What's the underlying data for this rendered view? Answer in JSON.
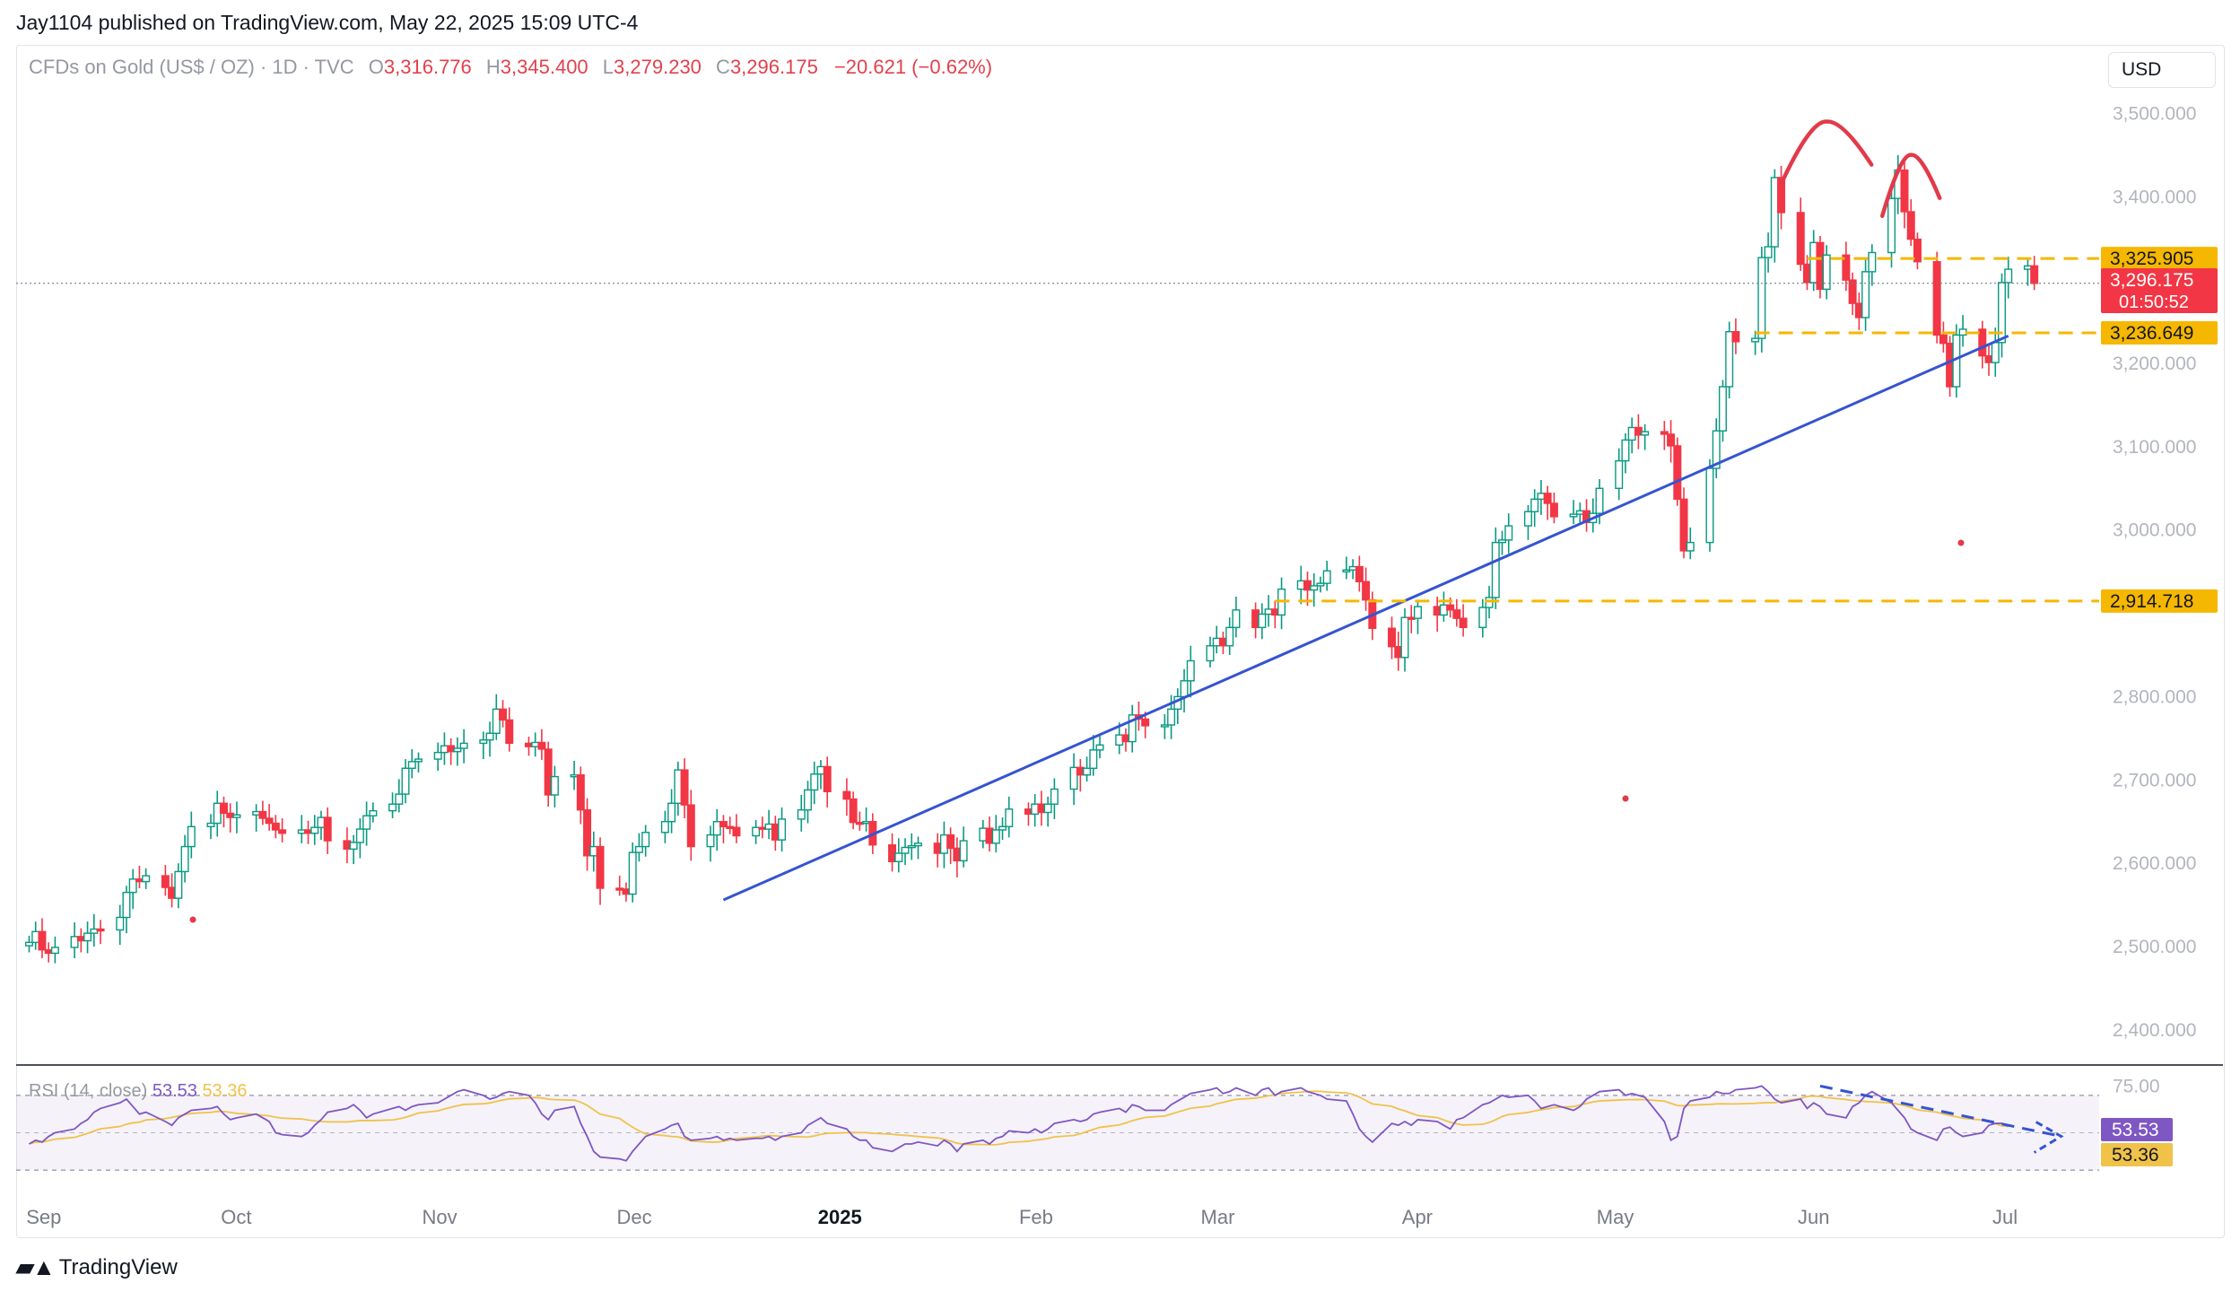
{
  "publisher": "Jay1104 published on TradingView.com, May 22, 2025 15:09 UTC-4",
  "symbol": {
    "name": "CFDs on Gold (US$ / OZ) · 1D · TVC",
    "open_label": "O",
    "open": "3,316.776",
    "high_label": "H",
    "high": "3,345.400",
    "low_label": "L",
    "low": "3,279.230",
    "close_label": "C",
    "close": "3,296.175",
    "change": "−20.621 (−0.62%)"
  },
  "currency": "USD",
  "brand": "TradingView",
  "colors": {
    "up": "#089981",
    "down": "#f23645",
    "trendline": "#3554d1",
    "level": "#f5b700",
    "rsi": "#7e57c2",
    "rsi_ma": "#f0c24a",
    "pattern": "#e23a4a"
  },
  "chart_data": {
    "type": "candlestick",
    "title": "CFDs on Gold (US$ / OZ) · 1D · TVC",
    "ylim": [
      2360,
      3550
    ],
    "yticks": [
      "3,500.000",
      "3,400.000",
      "3,200.000",
      "3,100.000",
      "3,000.000",
      "2,800.000",
      "2,700.000",
      "2,600.000",
      "2,500.000",
      "2,400.000"
    ],
    "ytick_values": [
      3500,
      3400,
      3200,
      3100,
      3000,
      2800,
      2700,
      2600,
      2500,
      2400
    ],
    "xticks": [
      "Sep",
      "Oct",
      "Nov",
      "Dec",
      "2025",
      "Feb",
      "Mar",
      "Apr",
      "May",
      "Jun",
      "Jul"
    ],
    "xtick_days": [
      0,
      30,
      61,
      91,
      122,
      153,
      181,
      212,
      242,
      273,
      303
    ],
    "x_start_date": "2024-09-01",
    "x_range_days": [
      -1,
      320
    ],
    "closes": [
      2505,
      2518,
      2496,
      2492,
      2499,
      2512,
      2507,
      2516,
      2521,
      2520,
      2535,
      2565,
      2581,
      2578,
      2585,
      2571,
      2558,
      2590,
      2620,
      2644,
      2648,
      2672,
      2660,
      2655,
      2658,
      2662,
      2654,
      2648,
      2640,
      2636,
      2640,
      2636,
      2643,
      2655,
      2627,
      2617,
      2625,
      2641,
      2657,
      2663,
      2671,
      2683,
      2714,
      2722,
      2725,
      2733,
      2741,
      2734,
      2738,
      2744,
      2748,
      2756,
      2785,
      2772,
      2744,
      2740,
      2745,
      2737,
      2682,
      2704,
      2706,
      2664,
      2609,
      2620,
      2570,
      2569,
      2563,
      2613,
      2620,
      2637,
      2650,
      2672,
      2712,
      2670,
      2620,
      2634,
      2650,
      2644,
      2643,
      2633,
      2643,
      2641,
      2647,
      2628,
      2653,
      2664,
      2688,
      2707,
      2716,
      2686,
      2677,
      2649,
      2648,
      2650,
      2622,
      2602,
      2612,
      2619,
      2621,
      2624,
      2612,
      2634,
      2618,
      2603,
      2627,
      2642,
      2624,
      2640,
      2644,
      2665,
      2659,
      2671,
      2661,
      2671,
      2689,
      2715,
      2706,
      2714,
      2736,
      2742,
      2754,
      2746,
      2778,
      2773,
      2765,
      2766,
      2785,
      2800,
      2819,
      2843,
      2861,
      2870,
      2861,
      2883,
      2904,
      2883,
      2899,
      2905,
      2898,
      2929,
      2939,
      2928,
      2933,
      2936,
      2951,
      2952,
      2956,
      2938,
      2916,
      2882,
      2860,
      2847,
      2895,
      2894,
      2908,
      2898,
      2910,
      2904,
      2894,
      2883,
      2907,
      2919,
      2985,
      2988,
      3005,
      3022,
      3037,
      3044,
      3032,
      3016,
      3019,
      3023,
      3009,
      3020,
      3050,
      3083,
      3108,
      3123,
      3114,
      3118,
      3115,
      3101,
      3037,
      2975,
      2985,
      3074,
      3119,
      3172,
      3238,
      3226,
      3230,
      3327,
      3340,
      3423,
      3381,
      3319,
      3297,
      3345,
      3289,
      3330,
      3300,
      3272,
      3255,
      3310,
      3333,
      3398,
      3432,
      3382,
      3349,
      3322,
      3234,
      3224,
      3172,
      3234,
      3241,
      3209,
      3201,
      3225,
      3297,
      3313,
      3317,
      3296
    ]
  },
  "levels": [
    "3,325.905",
    "3,236.649",
    "2,914.718"
  ],
  "level_values": [
    3325.905,
    3236.649,
    2914.718
  ],
  "price_label": {
    "price": "3,296.175",
    "countdown": "01:50:52",
    "value": 3296.175
  },
  "rsi": {
    "legend": "RSI (14, close)",
    "value": "53.53",
    "ma": "53.36",
    "top_tick": "75.00",
    "ylim": [
      20,
      80
    ],
    "band": [
      70,
      30
    ],
    "series": [
      44,
      46,
      45,
      48,
      50,
      52,
      55,
      57,
      61,
      63,
      66,
      68,
      64,
      60,
      61,
      56,
      54,
      58,
      60,
      62,
      63,
      64,
      60,
      57,
      58,
      60,
      58,
      56,
      50,
      49,
      48,
      50,
      54,
      57,
      61,
      63,
      65,
      62,
      58,
      60,
      63,
      64,
      62,
      64,
      65,
      66,
      68,
      70,
      72,
      73,
      70,
      68,
      69,
      71,
      72,
      70,
      66,
      60,
      57,
      62,
      64,
      55,
      48,
      40,
      37,
      36,
      35,
      40,
      44,
      48,
      52,
      54,
      55,
      48,
      46,
      47,
      48,
      46,
      47,
      46,
      47,
      47,
      48,
      46,
      48,
      50,
      54,
      56,
      58,
      55,
      52,
      48,
      46,
      46,
      42,
      40,
      42,
      44,
      44,
      45,
      43,
      46,
      44,
      40,
      44,
      46,
      44,
      47,
      48,
      51,
      50,
      52,
      50,
      52,
      55,
      57,
      56,
      57,
      60,
      61,
      63,
      61,
      65,
      64,
      62,
      62,
      65,
      67,
      69,
      71,
      73,
      74,
      71,
      72,
      74,
      70,
      73,
      74,
      70,
      72,
      74,
      72,
      71,
      70,
      68,
      67,
      60,
      52,
      48,
      45,
      55,
      54,
      56,
      54,
      57,
      56,
      54,
      52,
      57,
      58,
      65,
      66,
      68,
      70,
      69,
      70,
      67,
      63,
      64,
      65,
      62,
      64,
      68,
      70,
      72,
      73,
      70,
      71,
      70,
      69,
      56,
      46,
      48,
      63,
      67,
      69,
      72,
      71,
      71,
      73,
      74,
      75,
      72,
      68,
      66,
      68,
      63,
      66,
      64,
      60,
      58,
      64,
      66,
      70,
      72,
      66,
      62,
      58,
      52,
      50,
      46,
      52,
      53,
      50,
      48,
      50,
      54,
      55,
      55,
      53.53
    ]
  }
}
